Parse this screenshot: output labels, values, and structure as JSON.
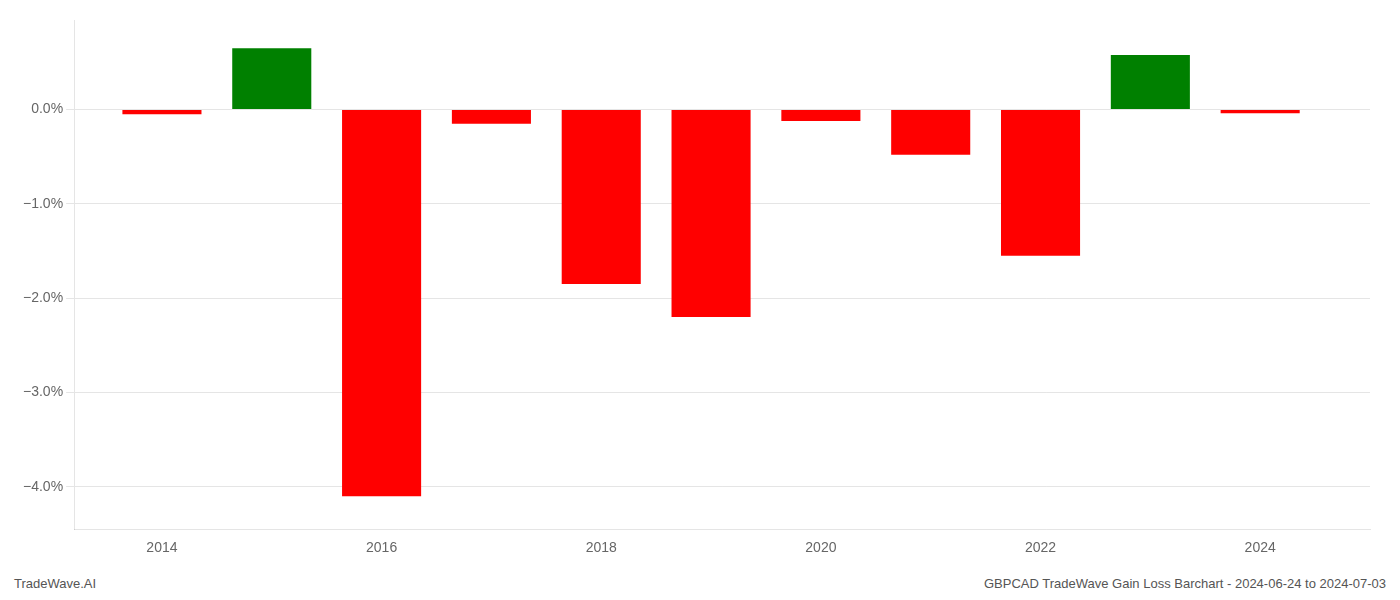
{
  "chart_data": {
    "type": "bar",
    "x": [
      2014,
      2015,
      2016,
      2017,
      2018,
      2019,
      2020,
      2021,
      2022,
      2023,
      2024
    ],
    "values": [
      -0.05,
      0.65,
      -4.1,
      -0.15,
      -1.85,
      -2.2,
      -0.12,
      -0.48,
      -1.55,
      0.58,
      -0.04
    ],
    "colors": [
      "#ff0000",
      "#008000",
      "#ff0000",
      "#ff0000",
      "#ff0000",
      "#ff0000",
      "#ff0000",
      "#ff0000",
      "#ff0000",
      "#008000",
      "#ff0000"
    ],
    "xlim": [
      2013.2,
      2025.0
    ],
    "xticks": [
      2014,
      2016,
      2018,
      2020,
      2022,
      2024
    ],
    "ylim": [
      -4.45,
      0.95
    ],
    "yticks": [
      {
        "value": 0.0,
        "label": "0.0%"
      },
      {
        "value": -1.0,
        "label": "−1.0%"
      },
      {
        "value": -2.0,
        "label": "−2.0%"
      },
      {
        "value": -3.0,
        "label": "−3.0%"
      },
      {
        "value": -4.0,
        "label": "−4.0%"
      }
    ],
    "grid": true,
    "annotations": [
      "TradeWave.AI",
      "GBPCAD TradeWave Gain Loss Barchart - 2024-06-24 to 2024-07-03"
    ]
  }
}
